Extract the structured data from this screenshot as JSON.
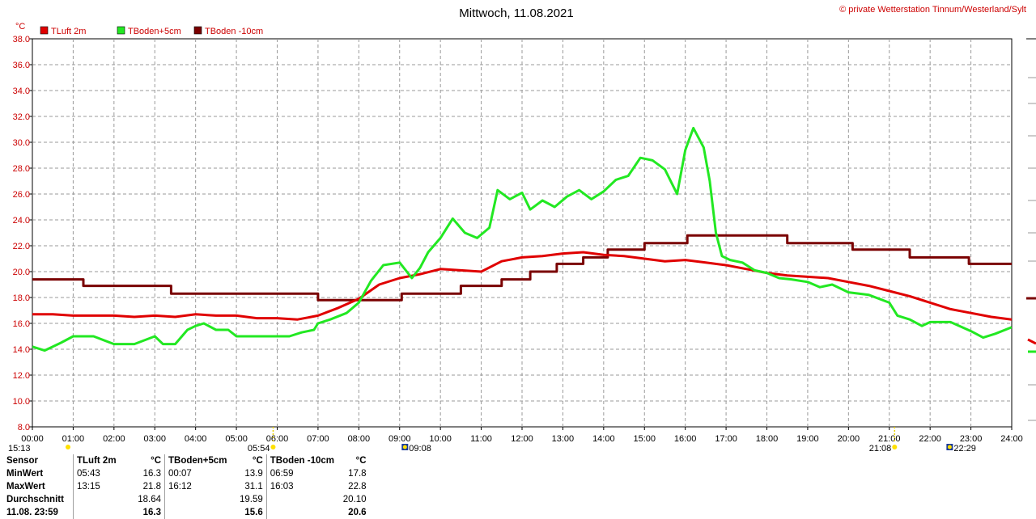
{
  "chart_data": {
    "type": "line",
    "title": "Mittwoch, 11.08.2021",
    "credit": "© private Wetterstation Tinnum/Westerland/Sylt",
    "yunit": "°C",
    "ylim": [
      8,
      38
    ],
    "yticks": [
      "8.0",
      "10.0",
      "12.0",
      "14.0",
      "16.0",
      "18.0",
      "20.0",
      "22.0",
      "24.0",
      "26.0",
      "28.0",
      "30.0",
      "32.0",
      "34.0",
      "36.0",
      "38.0"
    ],
    "xlim": [
      0,
      24
    ],
    "xticks": [
      "00:00",
      "01:00",
      "02:00",
      "03:00",
      "04:00",
      "05:00",
      "06:00",
      "07:00",
      "08:00",
      "09:00",
      "10:00",
      "11:00",
      "12:00",
      "13:00",
      "14:00",
      "15:00",
      "16:00",
      "17:00",
      "18:00",
      "19:00",
      "20:00",
      "21:00",
      "22:00",
      "23:00",
      "24:00"
    ],
    "grid": true,
    "legend_position": "top-left",
    "sun_moon": [
      {
        "label": "15:13",
        "hour": 0.0,
        "kind": "moon"
      },
      {
        "label": "05:54",
        "hour": 5.9,
        "kind": "sunrise"
      },
      {
        "label": "09:08",
        "hour": 9.13,
        "kind": "moonrise"
      },
      {
        "label": "21:08",
        "hour": 21.13,
        "kind": "sunset"
      },
      {
        "label": "22:29",
        "hour": 22.48,
        "kind": "moonset"
      }
    ],
    "series": [
      {
        "name": "TLuft 2m",
        "color": "#e00000",
        "x": [
          0,
          0.5,
          1,
          1.5,
          2,
          2.5,
          3,
          3.5,
          4,
          4.5,
          5,
          5.5,
          6,
          6.5,
          7,
          7.5,
          8,
          8.5,
          9,
          9.5,
          10,
          10.5,
          11,
          11.5,
          12,
          12.5,
          13,
          13.5,
          14,
          14.5,
          15,
          15.5,
          16,
          16.5,
          17,
          17.5,
          18,
          18.5,
          19,
          19.5,
          20,
          20.5,
          21,
          21.5,
          22,
          22.5,
          23,
          23.5,
          24
        ],
        "values": [
          16.7,
          16.7,
          16.6,
          16.6,
          16.6,
          16.5,
          16.6,
          16.5,
          16.7,
          16.6,
          16.6,
          16.4,
          16.4,
          16.3,
          16.6,
          17.2,
          17.9,
          19.0,
          19.5,
          19.8,
          20.2,
          20.1,
          20.0,
          20.8,
          21.1,
          21.2,
          21.4,
          21.5,
          21.3,
          21.2,
          21.0,
          20.8,
          20.9,
          20.7,
          20.5,
          20.2,
          19.9,
          19.7,
          19.6,
          19.5,
          19.2,
          18.9,
          18.5,
          18.1,
          17.6,
          17.1,
          16.8,
          16.5,
          16.3
        ]
      },
      {
        "name": "TBoden+5cm",
        "color": "#22e822",
        "x": [
          0,
          0.3,
          0.7,
          1.0,
          1.5,
          2.0,
          2.5,
          3.0,
          3.2,
          3.5,
          3.8,
          4.0,
          4.2,
          4.5,
          4.8,
          5.0,
          5.5,
          6.0,
          6.3,
          6.6,
          6.9,
          7.0,
          7.3,
          7.7,
          8.0,
          8.3,
          8.6,
          9.0,
          9.3,
          9.5,
          9.7,
          10.0,
          10.3,
          10.6,
          10.9,
          11.2,
          11.4,
          11.7,
          12.0,
          12.2,
          12.5,
          12.8,
          13.1,
          13.4,
          13.7,
          14.0,
          14.3,
          14.6,
          14.9,
          15.2,
          15.5,
          15.8,
          16.0,
          16.2,
          16.45,
          16.6,
          16.75,
          16.9,
          17.1,
          17.4,
          17.7,
          18.0,
          18.3,
          18.6,
          19.0,
          19.3,
          19.6,
          20.0,
          20.5,
          21.0,
          21.2,
          21.5,
          21.8,
          22.0,
          22.5,
          23.0,
          23.3,
          23.6,
          24.0
        ],
        "values": [
          14.2,
          13.9,
          14.5,
          15.0,
          15.0,
          14.4,
          14.4,
          15.0,
          14.4,
          14.4,
          15.5,
          15.8,
          16.0,
          15.5,
          15.5,
          15.0,
          15.0,
          15.0,
          15.0,
          15.3,
          15.5,
          16.0,
          16.3,
          16.8,
          17.6,
          19.3,
          20.5,
          20.7,
          19.5,
          20.3,
          21.5,
          22.6,
          24.1,
          23.0,
          22.6,
          23.4,
          26.3,
          25.6,
          26.1,
          24.8,
          25.5,
          25.0,
          25.8,
          26.3,
          25.6,
          26.2,
          27.1,
          27.4,
          28.8,
          28.6,
          27.9,
          26.0,
          29.4,
          31.1,
          29.6,
          27.0,
          23.0,
          21.2,
          20.9,
          20.7,
          20.1,
          19.9,
          19.5,
          19.4,
          19.2,
          18.8,
          19.0,
          18.4,
          18.2,
          17.6,
          16.6,
          16.3,
          15.8,
          16.1,
          16.1,
          15.4,
          14.9,
          15.2,
          15.7
        ]
      },
      {
        "name": "TBoden -10cm",
        "color": "#7a0000",
        "x": [
          0,
          1.25,
          1.25,
          3.4,
          3.4,
          7.0,
          7.0,
          9.05,
          9.05,
          10.5,
          10.5,
          11.5,
          11.5,
          12.2,
          12.2,
          12.85,
          12.85,
          13.5,
          13.5,
          14.1,
          14.1,
          15.0,
          15.0,
          16.05,
          16.05,
          18.5,
          18.5,
          20.1,
          20.1,
          21.5,
          21.5,
          22.95,
          22.95,
          24.0
        ],
        "values": [
          19.4,
          19.4,
          18.9,
          18.9,
          18.3,
          18.3,
          17.8,
          17.8,
          18.3,
          18.3,
          18.9,
          18.9,
          19.4,
          19.4,
          20.0,
          20.0,
          20.6,
          20.6,
          21.1,
          21.1,
          21.7,
          21.7,
          22.2,
          22.2,
          22.8,
          22.8,
          22.2,
          22.2,
          21.7,
          21.7,
          21.1,
          21.1,
          20.6,
          20.6
        ]
      }
    ]
  },
  "stats": {
    "header": {
      "sensor": "Sensor",
      "unit": "°C",
      "s1": "TLuft 2m",
      "s2": "TBoden+5cm",
      "s3": "TBoden -10cm"
    },
    "rows": [
      {
        "label": "MinWert",
        "t1": "05:43",
        "v1": "16.3",
        "t2": "00:07",
        "v2": "13.9",
        "t3": "06:59",
        "v3": "17.8"
      },
      {
        "label": "MaxWert",
        "t1": "13:15",
        "v1": "21.8",
        "t2": "16:12",
        "v2": "31.1",
        "t3": "16:03",
        "v3": "22.8"
      },
      {
        "label": "Durchschnitt",
        "t1": "",
        "v1": "18.64",
        "t2": "",
        "v2": "19.59",
        "t3": "",
        "v3": "20.10"
      },
      {
        "label": "11.08. 23:59",
        "t1": "",
        "v1": "16.3",
        "t2": "",
        "v2": "15.6",
        "t3": "",
        "v3": "20.6"
      }
    ]
  }
}
